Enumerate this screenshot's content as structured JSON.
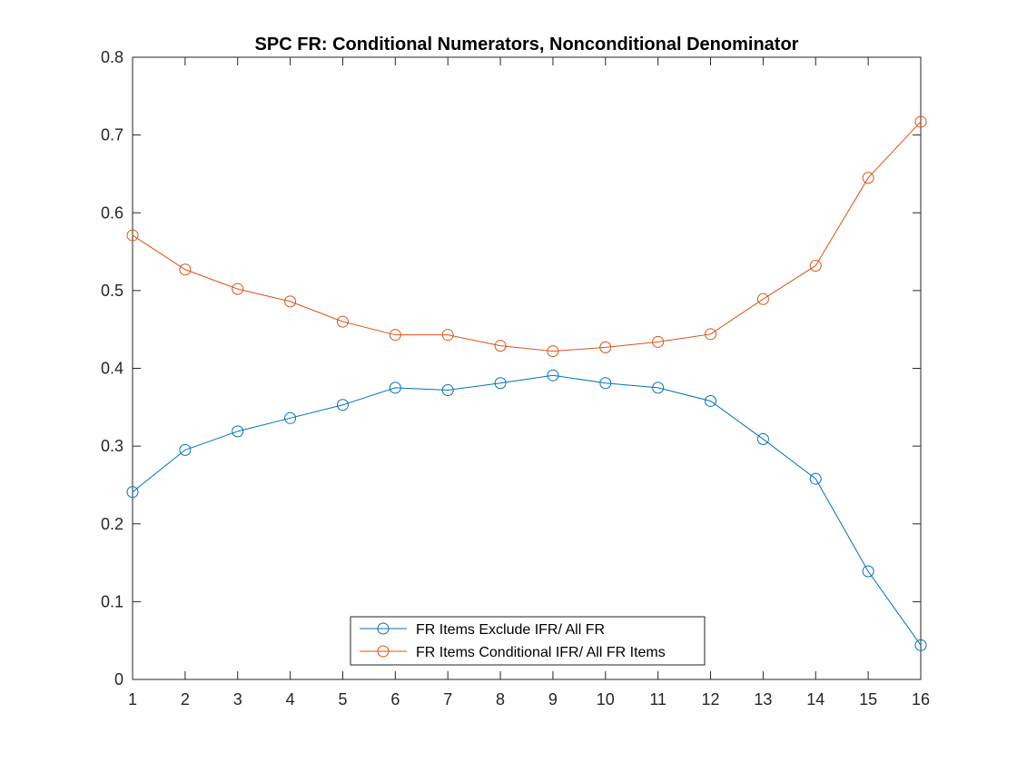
{
  "chart_data": {
    "type": "line",
    "title": "SPC FR: Conditional Numerators, Nonconditional Denominator",
    "xlabel": "",
    "ylabel": "",
    "x": [
      1,
      2,
      3,
      4,
      5,
      6,
      7,
      8,
      9,
      10,
      11,
      12,
      13,
      14,
      15,
      16
    ],
    "xlim": [
      1,
      16
    ],
    "ylim": [
      0,
      0.8
    ],
    "xticks": [
      1,
      2,
      3,
      4,
      5,
      6,
      7,
      8,
      9,
      10,
      11,
      12,
      13,
      14,
      15,
      16
    ],
    "yticks": [
      0,
      0.1,
      0.2,
      0.3,
      0.4,
      0.5,
      0.6,
      0.7,
      0.8
    ],
    "ytick_labels": [
      "0",
      "0.1",
      "0.2",
      "0.3",
      "0.4",
      "0.5",
      "0.6",
      "0.7",
      "0.8"
    ],
    "grid": false,
    "legend_position": "bottom-center",
    "series": [
      {
        "name": "FR Items Exclude IFR/ All FR",
        "color": "#0072BD",
        "marker": "circle",
        "values": [
          0.241,
          0.295,
          0.319,
          0.336,
          0.353,
          0.375,
          0.372,
          0.381,
          0.391,
          0.381,
          0.375,
          0.358,
          0.309,
          0.258,
          0.139,
          0.044
        ]
      },
      {
        "name": "FR Items Conditional IFR/ All FR Items",
        "color": "#D95319",
        "marker": "circle",
        "values": [
          0.571,
          0.527,
          0.502,
          0.486,
          0.46,
          0.443,
          0.443,
          0.429,
          0.422,
          0.427,
          0.434,
          0.444,
          0.489,
          0.532,
          0.645,
          0.717
        ]
      }
    ]
  }
}
